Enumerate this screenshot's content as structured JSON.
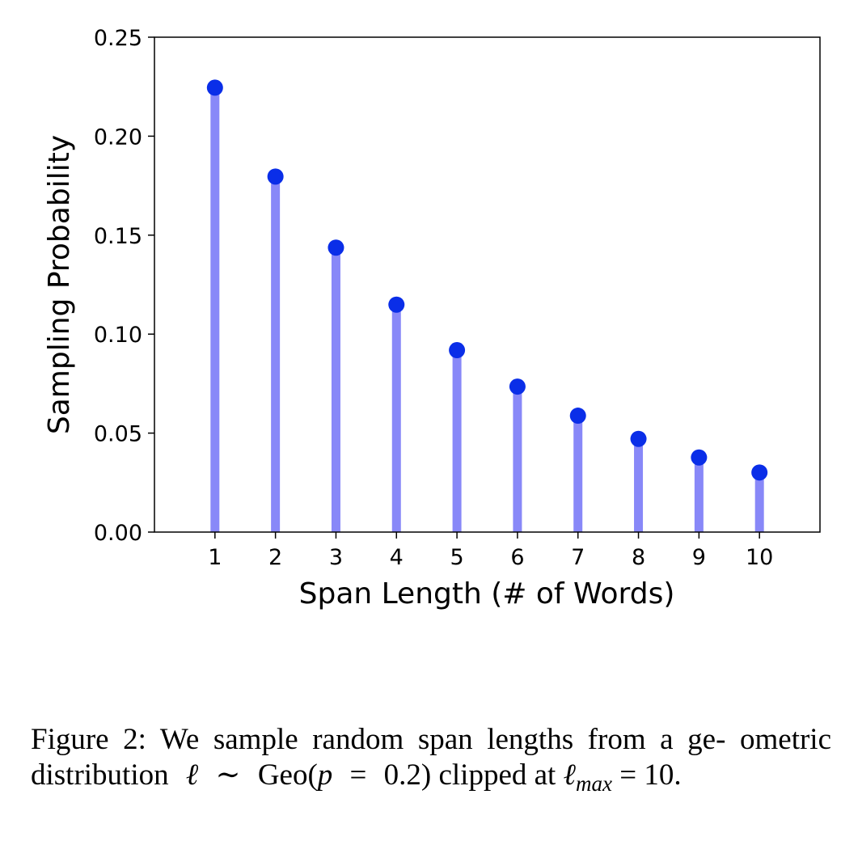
{
  "chart_data": {
    "type": "stem",
    "x": [
      1,
      2,
      3,
      4,
      5,
      6,
      7,
      8,
      9,
      10
    ],
    "values": [
      0.2245,
      0.1796,
      0.1437,
      0.1149,
      0.0919,
      0.0735,
      0.0588,
      0.0471,
      0.0377,
      0.0301
    ],
    "xlabel": "Span Length (# of Words)",
    "ylabel": "Sampling Probability",
    "xlim": [
      0,
      11
    ],
    "ylim": [
      0,
      0.25
    ],
    "yticks": [
      "0.00",
      "0.05",
      "0.10",
      "0.15",
      "0.20",
      "0.25"
    ],
    "ytick_values": [
      0,
      0.05,
      0.1,
      0.15,
      0.2,
      0.25
    ],
    "xticks": [
      "1",
      "2",
      "3",
      "4",
      "5",
      "6",
      "7",
      "8",
      "9",
      "10"
    ],
    "grid": false,
    "stem_color": "#8888f8",
    "marker_color": "#0a2ee8"
  },
  "caption": {
    "prefix": "Figure 2:",
    "line1": "We sample random span lengths from a ge-",
    "line2_a": "ometric distribution",
    "ell": "ℓ",
    "sim": "∼",
    "geo": "Geo(",
    "p": "p",
    "eq": "=",
    "val": "0.2)",
    "line2_b": "clipped at",
    "sub": "max",
    "line3_eq": "= 10."
  }
}
